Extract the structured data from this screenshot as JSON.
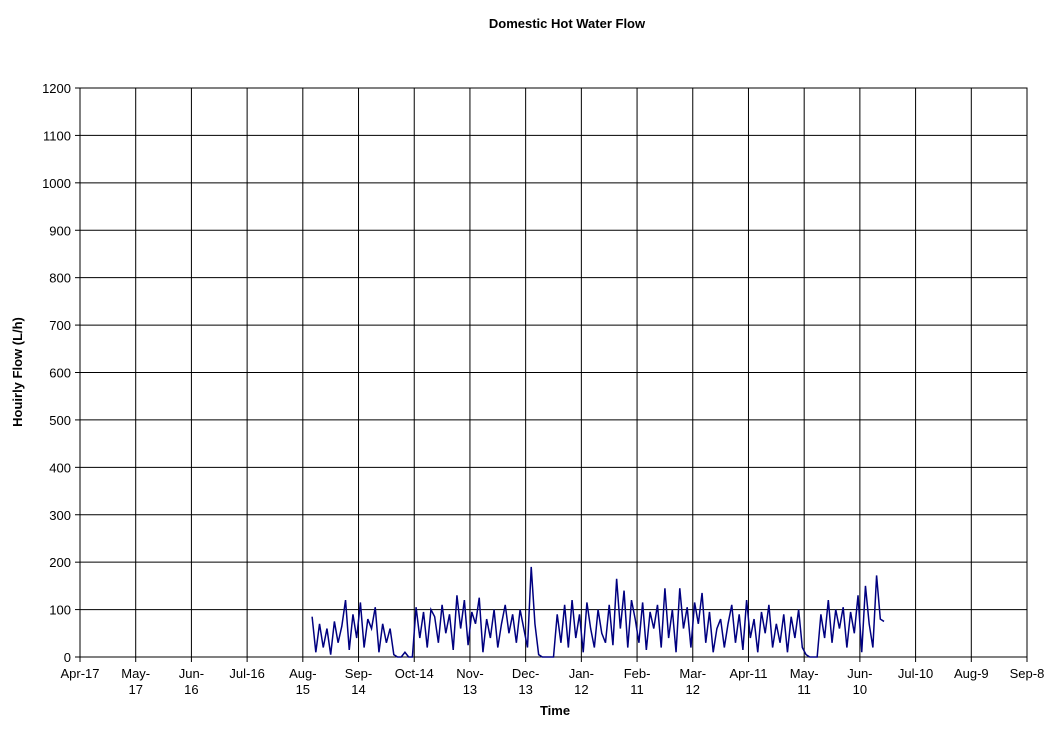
{
  "chart_data": {
    "type": "line",
    "title": "Domestic Hot Water Flow",
    "x_label": "Time",
    "y_label": "Houirly Flow (L/h)",
    "color": "#000080",
    "grid": true,
    "xlim": [
      0,
      510
    ],
    "ylim": [
      0,
      1200
    ],
    "yticks": [
      0,
      100,
      200,
      300,
      400,
      500,
      600,
      700,
      800,
      900,
      1000,
      1100,
      1200
    ],
    "xticks": [
      {
        "value": 0,
        "label": "Apr-17"
      },
      {
        "value": 30,
        "label": "May-17"
      },
      {
        "value": 60,
        "label": "Jun-16"
      },
      {
        "value": 90,
        "label": "Jul-16"
      },
      {
        "value": 120,
        "label": "Aug-15"
      },
      {
        "value": 150,
        "label": "Sep-14"
      },
      {
        "value": 180,
        "label": "Oct-14"
      },
      {
        "value": 210,
        "label": "Nov-13"
      },
      {
        "value": 240,
        "label": "Dec-13"
      },
      {
        "value": 270,
        "label": "Jan-12"
      },
      {
        "value": 300,
        "label": "Feb-11"
      },
      {
        "value": 330,
        "label": "Mar-12"
      },
      {
        "value": 360,
        "label": "Apr-11"
      },
      {
        "value": 390,
        "label": "May-11"
      },
      {
        "value": 420,
        "label": "Jun-10"
      },
      {
        "value": 450,
        "label": "Jul-10"
      },
      {
        "value": 480,
        "label": "Aug-9"
      },
      {
        "value": 510,
        "label": "Sep-8"
      }
    ],
    "x": [
      125,
      127,
      129,
      131,
      133,
      135,
      137,
      139,
      141,
      143,
      145,
      147,
      149,
      151,
      153,
      155,
      157,
      159,
      161,
      163,
      165,
      167,
      169,
      171,
      173,
      175,
      177,
      179,
      181,
      183,
      185,
      187,
      189,
      191,
      193,
      195,
      197,
      199,
      201,
      203,
      205,
      207,
      209,
      211,
      213,
      215,
      217,
      219,
      221,
      223,
      225,
      227,
      229,
      231,
      233,
      235,
      237,
      239,
      241,
      243,
      245,
      247,
      249,
      251,
      253,
      255,
      257,
      259,
      261,
      263,
      265,
      267,
      269,
      271,
      273,
      275,
      277,
      279,
      281,
      283,
      285,
      287,
      289,
      291,
      293,
      295,
      297,
      299,
      301,
      303,
      305,
      307,
      309,
      311,
      313,
      315,
      317,
      319,
      321,
      323,
      325,
      327,
      329,
      331,
      333,
      335,
      337,
      339,
      341,
      343,
      345,
      347,
      349,
      351,
      353,
      355,
      357,
      359,
      361,
      363,
      365,
      367,
      369,
      371,
      373,
      375,
      377,
      379,
      381,
      383,
      385,
      387,
      389,
      391,
      393,
      395,
      397,
      399,
      401,
      403,
      405,
      407,
      409,
      411,
      413,
      415,
      417,
      419,
      421,
      423,
      425,
      427,
      429,
      431,
      433
    ],
    "values": [
      85,
      10,
      70,
      20,
      60,
      5,
      75,
      30,
      65,
      120,
      15,
      90,
      40,
      115,
      20,
      80,
      60,
      105,
      10,
      70,
      30,
      60,
      5,
      0,
      0,
      10,
      0,
      0,
      105,
      40,
      95,
      20,
      100,
      85,
      30,
      110,
      50,
      90,
      15,
      130,
      60,
      120,
      25,
      95,
      70,
      125,
      10,
      80,
      40,
      100,
      20,
      70,
      110,
      50,
      90,
      30,
      100,
      60,
      20,
      190,
      70,
      5,
      0,
      0,
      0,
      0,
      90,
      30,
      110,
      20,
      120,
      40,
      90,
      10,
      115,
      60,
      20,
      100,
      50,
      30,
      110,
      25,
      165,
      60,
      140,
      20,
      120,
      80,
      30,
      115,
      15,
      95,
      60,
      110,
      20,
      145,
      40,
      100,
      10,
      145,
      60,
      105,
      20,
      115,
      70,
      135,
      30,
      95,
      10,
      60,
      80,
      20,
      70,
      110,
      30,
      90,
      15,
      120,
      40,
      80,
      10,
      95,
      50,
      110,
      20,
      70,
      30,
      90,
      10,
      85,
      40,
      100,
      20,
      5,
      0,
      0,
      0,
      90,
      40,
      120,
      30,
      100,
      60,
      105,
      20,
      95,
      50,
      130,
      10,
      150,
      70,
      20,
      172,
      80,
      75
    ]
  }
}
